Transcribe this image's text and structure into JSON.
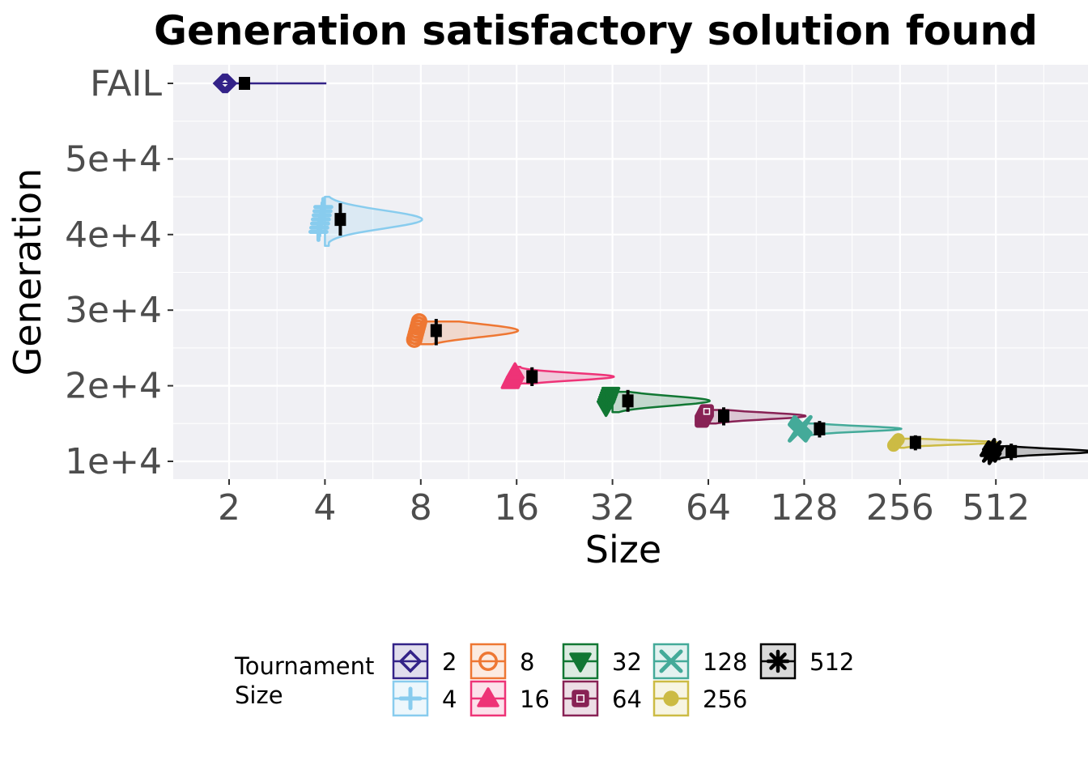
{
  "chart_data": {
    "type": "violin",
    "title": "Generation satisfactory solution found",
    "xlabel": "Size",
    "ylabel": "Generation",
    "x_scale": "log2",
    "y_ticks": [
      {
        "label": "FAIL",
        "value": 60000
      },
      {
        "label": "5e+4",
        "value": 50000
      },
      {
        "label": "4e+4",
        "value": 40000
      },
      {
        "label": "3e+4",
        "value": 30000
      },
      {
        "label": "2e+4",
        "value": 20000
      },
      {
        "label": "1e+4",
        "value": 10000
      }
    ],
    "ylim": [
      7700,
      61200
    ],
    "x_ticks": [
      "2",
      "4",
      "8",
      "16",
      "32",
      "64",
      "128",
      "256",
      "512"
    ],
    "legend": {
      "title": "Tournament\nSize",
      "position": "bottom",
      "entries": [
        "2",
        "4",
        "8",
        "16",
        "32",
        "64",
        "128",
        "256",
        "512"
      ]
    },
    "series": [
      {
        "name": "2",
        "color": "#332288",
        "marker": "diamond",
        "median": 60000,
        "q1": 60000,
        "q3": 60000,
        "ymin": 60000,
        "ymax": 60000,
        "spread_octaves": 1.75
      },
      {
        "name": "4",
        "color": "#88CCEE",
        "marker": "plus",
        "median": 42000,
        "q1": 40500,
        "q3": 43500,
        "ymin": 38500,
        "ymax": 45000,
        "spread_octaves": 1.75
      },
      {
        "name": "8",
        "color": "#EE7733",
        "marker": "circle",
        "median": 27300,
        "q1": 26000,
        "q3": 28200,
        "ymin": 25500,
        "ymax": 28500,
        "spread_octaves": 1.75
      },
      {
        "name": "16",
        "color": "#EE3377",
        "marker": "triangle-up",
        "median": 21200,
        "q1": 20600,
        "q3": 21800,
        "ymin": 20300,
        "ymax": 22500,
        "spread_octaves": 1.75
      },
      {
        "name": "32",
        "color": "#117733",
        "marker": "triangle-down",
        "median": 18000,
        "q1": 17200,
        "q3": 18800,
        "ymin": 16500,
        "ymax": 19200,
        "spread_octaves": 1.75
      },
      {
        "name": "64",
        "color": "#882255",
        "marker": "square",
        "median": 16000,
        "q1": 15400,
        "q3": 16500,
        "ymin": 15000,
        "ymax": 16800,
        "spread_octaves": 1.75
      },
      {
        "name": "128",
        "color": "#44AA99",
        "marker": "x",
        "median": 14300,
        "q1": 13800,
        "q3": 14700,
        "ymin": 13300,
        "ymax": 15000,
        "spread_octaves": 1.75
      },
      {
        "name": "256",
        "color": "#CCBB44",
        "marker": "filled-circle",
        "median": 12500,
        "q1": 12100,
        "q3": 12800,
        "ymin": 11800,
        "ymax": 13000,
        "spread_octaves": 1.75
      },
      {
        "name": "512",
        "color": "#000000",
        "marker": "asterisk",
        "median": 11300,
        "q1": 10800,
        "q3": 11700,
        "ymin": 10300,
        "ymax": 12000,
        "spread_octaves": 1.75
      }
    ]
  }
}
